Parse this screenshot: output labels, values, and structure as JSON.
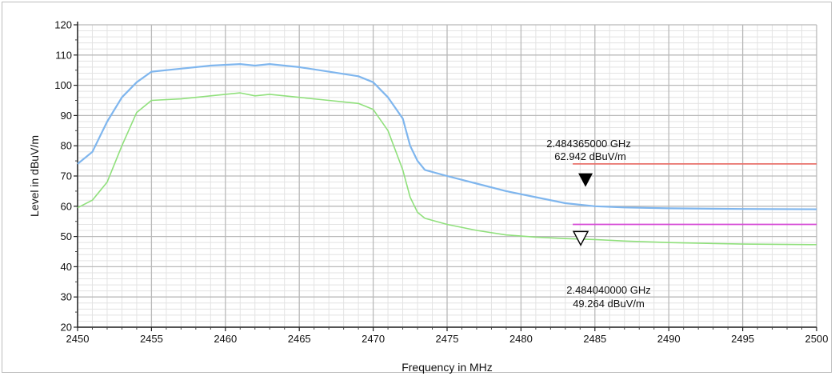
{
  "chart_data": {
    "type": "line",
    "title": "",
    "xlabel": "Frequency in MHz",
    "ylabel": "Level in dBuV/m",
    "xlim": [
      2450,
      2500
    ],
    "ylim": [
      20,
      120
    ],
    "x_ticks": [
      "2450",
      "2455",
      "2460",
      "2465",
      "2470",
      "2475",
      "2480",
      "2485",
      "2490",
      "2495",
      "2500"
    ],
    "y_ticks": [
      "20",
      "30",
      "40",
      "50",
      "60",
      "70",
      "80",
      "90",
      "100",
      "110",
      "120"
    ],
    "grid": true,
    "series": [
      {
        "color": "#7fb6ee",
        "x": [
          2450,
          2451,
          2452,
          2453,
          2454,
          2455,
          2457,
          2459,
          2461,
          2462,
          2463,
          2465,
          2467,
          2469,
          2470,
          2471,
          2472,
          2472.5,
          2473,
          2473.5,
          2475,
          2477,
          2479,
          2481,
          2483,
          2485,
          2487,
          2490,
          2495,
          2500
        ],
        "values": [
          74,
          78,
          88,
          96,
          101,
          104.5,
          105.5,
          106.5,
          107,
          106.5,
          107,
          106,
          104.5,
          103,
          101,
          96,
          89,
          80,
          75,
          72,
          70,
          67.5,
          65,
          63,
          61,
          60,
          59.6,
          59.3,
          59.1,
          59
        ]
      },
      {
        "color": "#90e07c",
        "x": [
          2450,
          2451,
          2452,
          2453,
          2454,
          2455,
          2457,
          2459,
          2461,
          2462,
          2463,
          2465,
          2467,
          2469,
          2470,
          2471,
          2472,
          2472.5,
          2473,
          2473.5,
          2475,
          2477,
          2479,
          2481,
          2483,
          2485,
          2487,
          2490,
          2495,
          2500
        ],
        "values": [
          59.5,
          62,
          68,
          80,
          91,
          95,
          95.5,
          96.5,
          97.5,
          96.5,
          97,
          96,
          95,
          94,
          92,
          85,
          72,
          63,
          58,
          56,
          54,
          52,
          50.5,
          49.8,
          49.3,
          49,
          48.5,
          48,
          47.5,
          47.3
        ]
      }
    ],
    "limit_lines": [
      {
        "y": 74,
        "x_start": 2483.5,
        "x_end": 2500,
        "color": "#e8726c"
      },
      {
        "y": 54,
        "x_start": 2483.5,
        "x_end": 2500,
        "color": "#d64bd6"
      }
    ],
    "markers": [
      {
        "x": 2484.365,
        "y": 62.942,
        "style": "filled-triangle",
        "label_freq": "2.484365000 GHz",
        "label_level": "62.942 dBuV/m"
      },
      {
        "x": 2484.04,
        "y": 49.264,
        "style": "hollow-triangle",
        "label_freq": "2.484040000 GHz",
        "label_level": "49.264 dBuV/m"
      }
    ]
  }
}
